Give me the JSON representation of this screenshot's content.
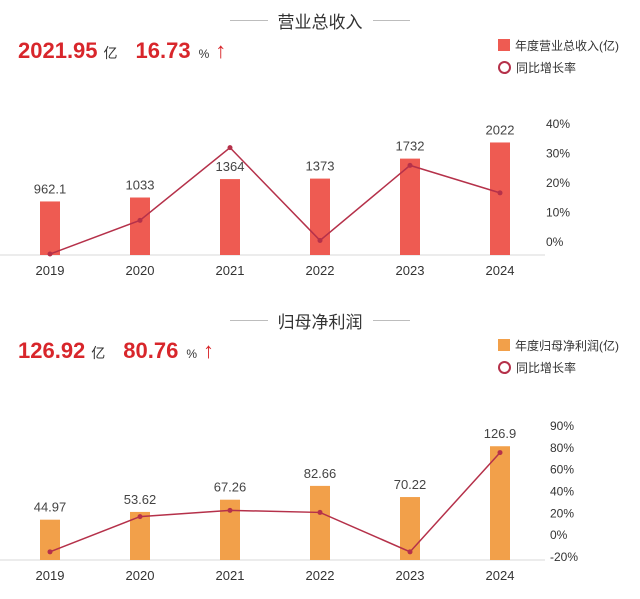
{
  "colors": {
    "revenue_bar": "#ee5b52",
    "profit_bar": "#f2a04a",
    "line": "#b5314a",
    "accent_red": "#d8262b"
  },
  "revenue": {
    "title": "营业总收入",
    "summary": {
      "value": "2021.95",
      "unit": "亿",
      "pct": "16.73",
      "pct_unit": "%",
      "arrow": "↑"
    },
    "legend": {
      "bar": "年度营业总收入(亿)",
      "line": "同比增长率"
    }
  },
  "profit": {
    "title": "归母净利润",
    "summary": {
      "value": "126.92",
      "unit": "亿",
      "pct": "80.76",
      "pct_unit": "%",
      "arrow": "↑"
    },
    "legend": {
      "bar": "年度归母净利润(亿)",
      "line": "同比增长率"
    }
  },
  "chart_data": [
    {
      "type": "bar",
      "title": "营业总收入",
      "categories": [
        "2019",
        "2020",
        "2021",
        "2022",
        "2023",
        "2024"
      ],
      "series": [
        {
          "name": "年度营业总收入(亿)",
          "kind": "bar",
          "values": [
            962.1,
            1033,
            1364,
            1373,
            1732,
            2022
          ],
          "labels": [
            "962.1",
            "1033",
            "1364",
            "1373",
            "1732",
            "2022"
          ]
        },
        {
          "name": "同比增长率",
          "kind": "line",
          "axis": "right",
          "values": [
            -4,
            7.4,
            32,
            0.6,
            26,
            16.7
          ]
        }
      ],
      "y_right_ticks": [
        "40%",
        "30%",
        "20%",
        "10%",
        "0%"
      ],
      "y_right_range": [
        -5,
        40
      ],
      "y_left_range": [
        0,
        2300
      ]
    },
    {
      "type": "bar",
      "title": "归母净利润",
      "categories": [
        "2019",
        "2020",
        "2021",
        "2022",
        "2023",
        "2024"
      ],
      "series": [
        {
          "name": "年度归母净利润(亿)",
          "kind": "bar",
          "values": [
            44.97,
            53.62,
            67.26,
            82.66,
            70.22,
            126.9
          ],
          "labels": [
            "44.97",
            "53.62",
            "67.26",
            "82.66",
            "70.22",
            "126.9"
          ]
        },
        {
          "name": "同比增长率",
          "kind": "line",
          "axis": "right",
          "values": [
            -15,
            19,
            25,
            23,
            -15,
            80.76
          ]
        }
      ],
      "y_right_ticks": [
        "90%",
        "80%",
        "60%",
        "40%",
        "20%",
        "0%",
        "-20%"
      ],
      "y_right_range": [
        -20,
        90
      ],
      "y_left_range": [
        0,
        145
      ]
    }
  ]
}
